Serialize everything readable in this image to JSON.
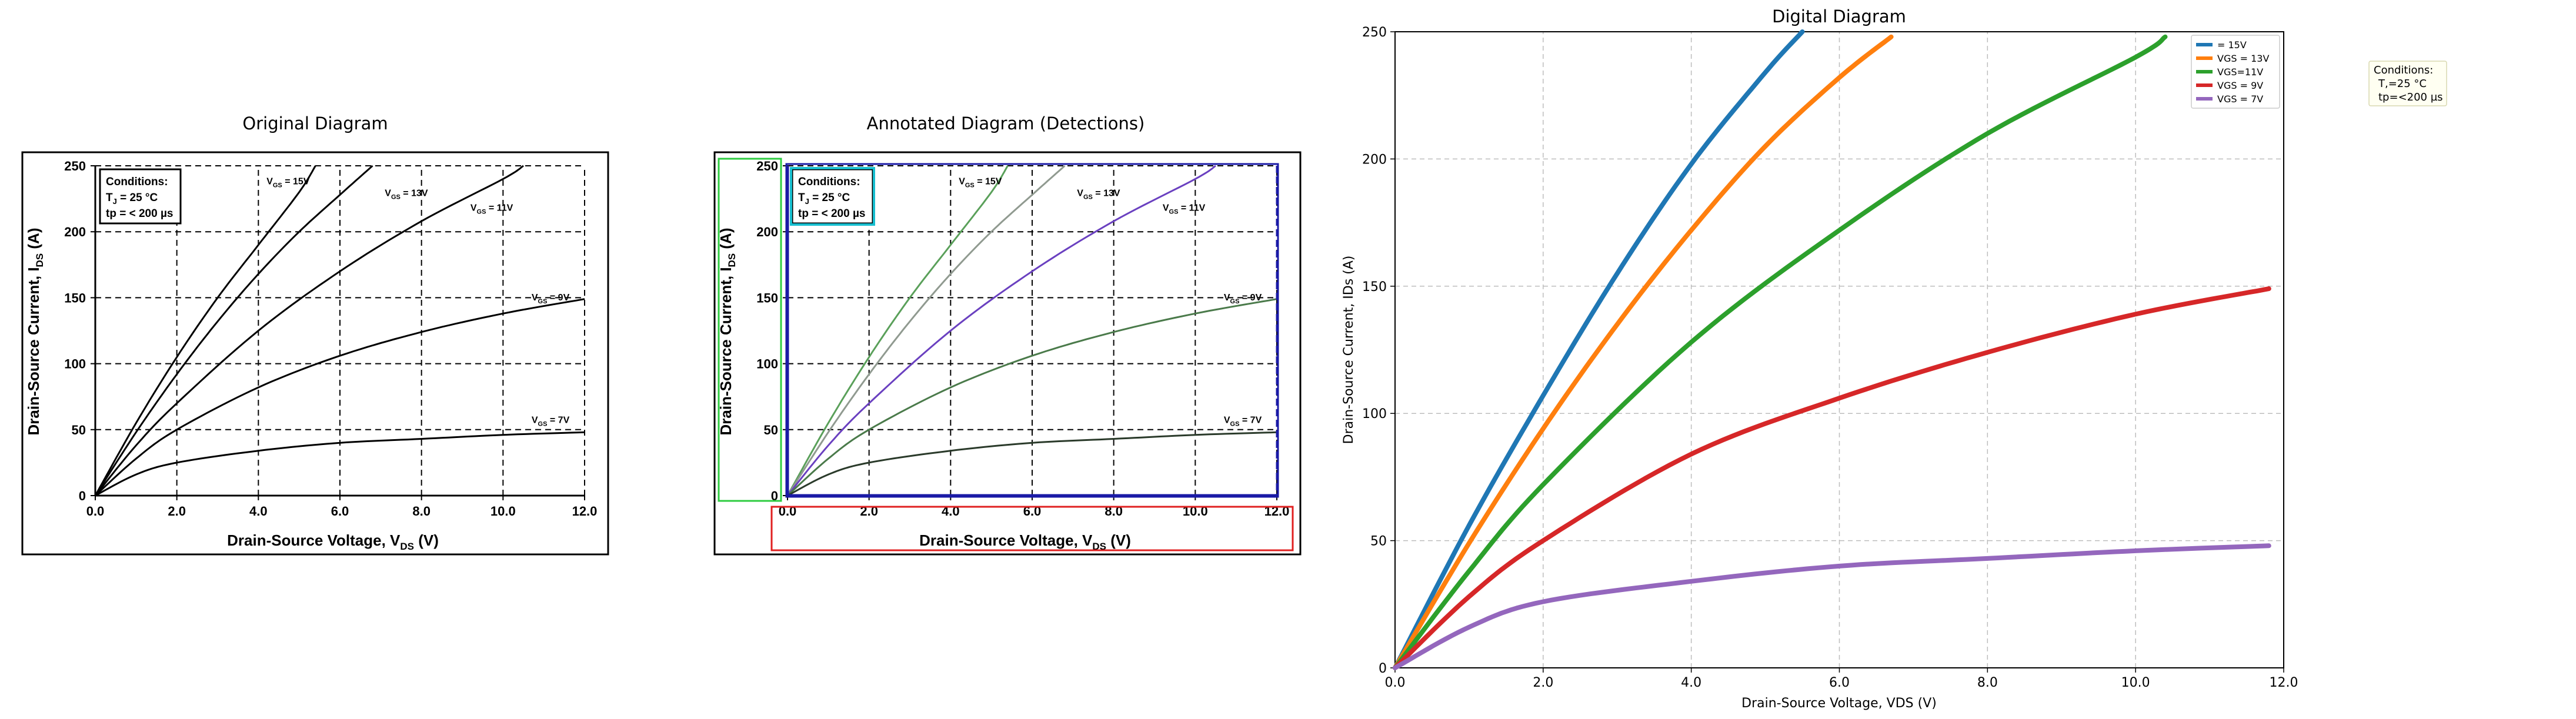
{
  "panels": {
    "original": {
      "title": "Original Diagram"
    },
    "annotated": {
      "title": "Annotated Diagram (Detections)"
    },
    "digital": {
      "title": "Digital Diagram"
    }
  },
  "raw_axes": {
    "x_label_main": "Drain-Source Voltage, V",
    "x_label_sub": "DS",
    "x_label_unit": " (V)",
    "y_label_main": "Drain-Source Current, I",
    "y_label_sub": "DS",
    "y_label_unit": " (A)"
  },
  "conditions": {
    "title": "Conditions:",
    "line1_main": "T",
    "line1_sub": "J",
    "line1_rest": " = 25 °C",
    "line2": "tp = < 200 µs"
  },
  "curve_labels": [
    {
      "prefix": "V",
      "sub": "GS",
      "suffix": " = 15V"
    },
    {
      "prefix": "V",
      "sub": "GS",
      "suffix": " = 13V"
    },
    {
      "prefix": "V",
      "sub": "GS",
      "suffix": " = 11V"
    },
    {
      "prefix": "V",
      "sub": "GS",
      "suffix": " = 9V"
    },
    {
      "prefix": "V",
      "sub": "GS",
      "suffix": " = 7V"
    }
  ],
  "digital_note": {
    "line1": "Conditions:",
    "line2": "T,=25 °C",
    "line3": "tp=<200 µs"
  },
  "colors": {
    "s15": "#1f77b4",
    "s13": "#ff7f0e",
    "s11": "#2ca02c",
    "s9": "#d62728",
    "s7": "#9467bd",
    "det_green": "#2ecc40",
    "det_blue": "#1a1aa6",
    "det_red": "#e02020",
    "det_cyan": "#17becf",
    "det_c15": "#5aa05a",
    "det_c13": "#909a90",
    "det_c11": "#6a40c0",
    "det_c9": "#4a7a4a",
    "det_c7": "#2a3a2a"
  },
  "chart_data": [
    {
      "type": "line",
      "panel": "original",
      "title": "Original Diagram",
      "xlabel": "Drain-Source Voltage, VDS (V)",
      "ylabel": "Drain-Source Current, IDS (A)",
      "xlim": [
        0,
        12
      ],
      "ylim": [
        0,
        250
      ],
      "xticks": [
        "0.0",
        "2.0",
        "4.0",
        "6.0",
        "8.0",
        "10.0",
        "12.0"
      ],
      "yticks": [
        "0",
        "50",
        "100",
        "150",
        "200",
        "250"
      ],
      "grid": "dashed",
      "series": [
        {
          "name": "VGS = 15V",
          "x": [
            0,
            1,
            2,
            3,
            4,
            5,
            5.4
          ],
          "y": [
            0,
            55,
            105,
            150,
            190,
            230,
            250
          ]
        },
        {
          "name": "VGS = 13V",
          "x": [
            0,
            1,
            2,
            3,
            4,
            5,
            6,
            6.8
          ],
          "y": [
            0,
            48,
            92,
            132,
            168,
            200,
            228,
            250
          ]
        },
        {
          "name": "VGS = 11V",
          "x": [
            0,
            1,
            2,
            4,
            6,
            8,
            10,
            10.5
          ],
          "y": [
            0,
            38,
            70,
            125,
            170,
            208,
            240,
            250
          ]
        },
        {
          "name": "VGS = 9V",
          "x": [
            0,
            1,
            2,
            4,
            6,
            8,
            10,
            12
          ],
          "y": [
            0,
            28,
            50,
            82,
            106,
            124,
            138,
            149
          ]
        },
        {
          "name": "VGS = 7V",
          "x": [
            0,
            1,
            2,
            4,
            6,
            8,
            10,
            12
          ],
          "y": [
            0,
            16,
            25,
            34,
            40,
            43,
            46,
            48
          ]
        }
      ]
    },
    {
      "type": "line",
      "panel": "digital",
      "title": "Digital Diagram",
      "xlabel": "Drain-Source Voltage, VDS (V)",
      "ylabel": "Drain-Source Current, IDs (A)",
      "xlim": [
        0,
        12
      ],
      "ylim": [
        0,
        250
      ],
      "xticks": [
        "0.0",
        "2.0",
        "4.0",
        "6.0",
        "8.0",
        "10.0",
        "12.0"
      ],
      "yticks": [
        "0",
        "50",
        "100",
        "150",
        "200",
        "250"
      ],
      "grid": "dashed",
      "legend": "top-right",
      "series": [
        {
          "name": "= 15V",
          "x": [
            0,
            1,
            2,
            3,
            4,
            5,
            5.5
          ],
          "y": [
            0,
            56,
            107,
            155,
            198,
            234,
            250
          ]
        },
        {
          "name": "VGS = 13V",
          "x": [
            0,
            1,
            2,
            3,
            4,
            5,
            6,
            6.7
          ],
          "y": [
            0,
            49,
            94,
            135,
            172,
            205,
            232,
            248
          ]
        },
        {
          "name": "VGS=11V",
          "x": [
            0,
            1,
            2,
            4,
            6,
            8,
            10,
            10.4
          ],
          "y": [
            0,
            38,
            72,
            128,
            172,
            210,
            240,
            248
          ]
        },
        {
          "name": "VGS = 9V",
          "x": [
            0,
            1,
            2,
            4,
            6,
            8,
            10,
            11.8
          ],
          "y": [
            0,
            28,
            50,
            84,
            106,
            124,
            139,
            149
          ]
        },
        {
          "name": "VGS = 7V",
          "x": [
            0,
            1,
            2,
            4,
            6,
            8,
            10,
            11.8
          ],
          "y": [
            0,
            16,
            26,
            34,
            40,
            43,
            46,
            48
          ]
        }
      ]
    }
  ]
}
